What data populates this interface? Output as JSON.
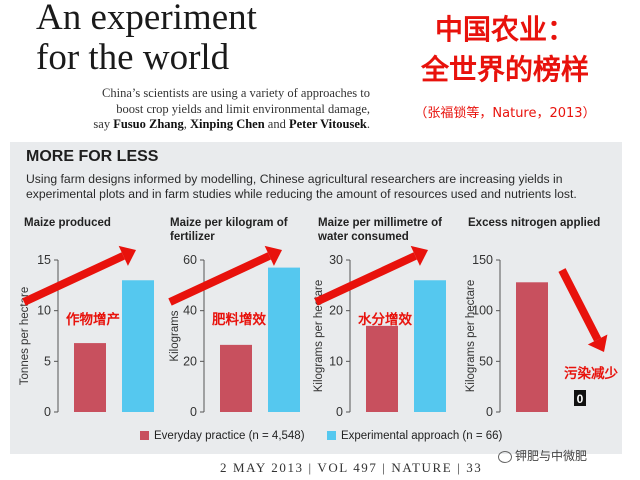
{
  "headline": {
    "line1": "An experiment",
    "line2": "for the world"
  },
  "lead": {
    "text1": "China’s scientists are using a variety of approaches to",
    "text2": "boost crop yields and limit environmental damage,",
    "text3_prefix": "say ",
    "author1": "Fusuo Zhang",
    "sep1": ", ",
    "author2": "Xinping Chen",
    "sep2": " and ",
    "author3": "Peter Vitousek",
    "end": "."
  },
  "cn_title": {
    "line1": "中国农业：",
    "line2": "全世界的榜样"
  },
  "cn_citation": "（张福锁等，Nature，2013）",
  "panel": {
    "title": "MORE FOR LESS",
    "description": "Using farm designs informed by modelling, Chinese agricultural researchers are increasing yields in experimental plots and in farm studies while reducing the amount of resources used and nutrients lost."
  },
  "colors": {
    "everyday": "#c8505e",
    "experimental": "#55c8ef",
    "arrow": "#e8120c",
    "panel": "#e9ebed"
  },
  "chart_data": [
    {
      "type": "bar",
      "title": "Maize produced",
      "ylabel": "Tonnes per hectare",
      "ylim": [
        0,
        15
      ],
      "ticks": [
        0,
        5,
        10,
        15
      ],
      "categories": [
        "Everyday practice",
        "Experimental approach"
      ],
      "values": [
        6.8,
        13
      ],
      "annotation": "作物增产",
      "trend": "up"
    },
    {
      "type": "bar",
      "title": "Maize per kilogram of fertilizer",
      "ylabel": "Kilograms",
      "ylim": [
        0,
        60
      ],
      "ticks": [
        0,
        20,
        40,
        60
      ],
      "categories": [
        "Everyday practice",
        "Experimental approach"
      ],
      "values": [
        26.5,
        57
      ],
      "annotation": "肥料增效",
      "trend": "up"
    },
    {
      "type": "bar",
      "title": "Maize per millimetre of water consumed",
      "ylabel": "Kilograms per hectare",
      "ylim": [
        0,
        30
      ],
      "ticks": [
        0,
        10,
        20,
        30
      ],
      "categories": [
        "Everyday practice",
        "Experimental approach"
      ],
      "values": [
        17,
        26
      ],
      "annotation": "水分增效",
      "trend": "up"
    },
    {
      "type": "bar",
      "title": "Excess nitrogen applied",
      "ylabel": "Kilograms per hectare",
      "ylim": [
        0,
        150
      ],
      "ticks": [
        0,
        50,
        100,
        150
      ],
      "categories": [
        "Everyday practice",
        "Experimental approach"
      ],
      "values": [
        128,
        0
      ],
      "value_label": "0",
      "annotation": "污染减少",
      "trend": "down"
    }
  ],
  "legend": {
    "everyday": "Everyday practice (n = 4,548)",
    "experimental": "Experimental approach (n = 66)"
  },
  "footer": "2 MAY 2013 | VOL 497 | NATURE | 33",
  "watermark": "钾肥与中微肥"
}
